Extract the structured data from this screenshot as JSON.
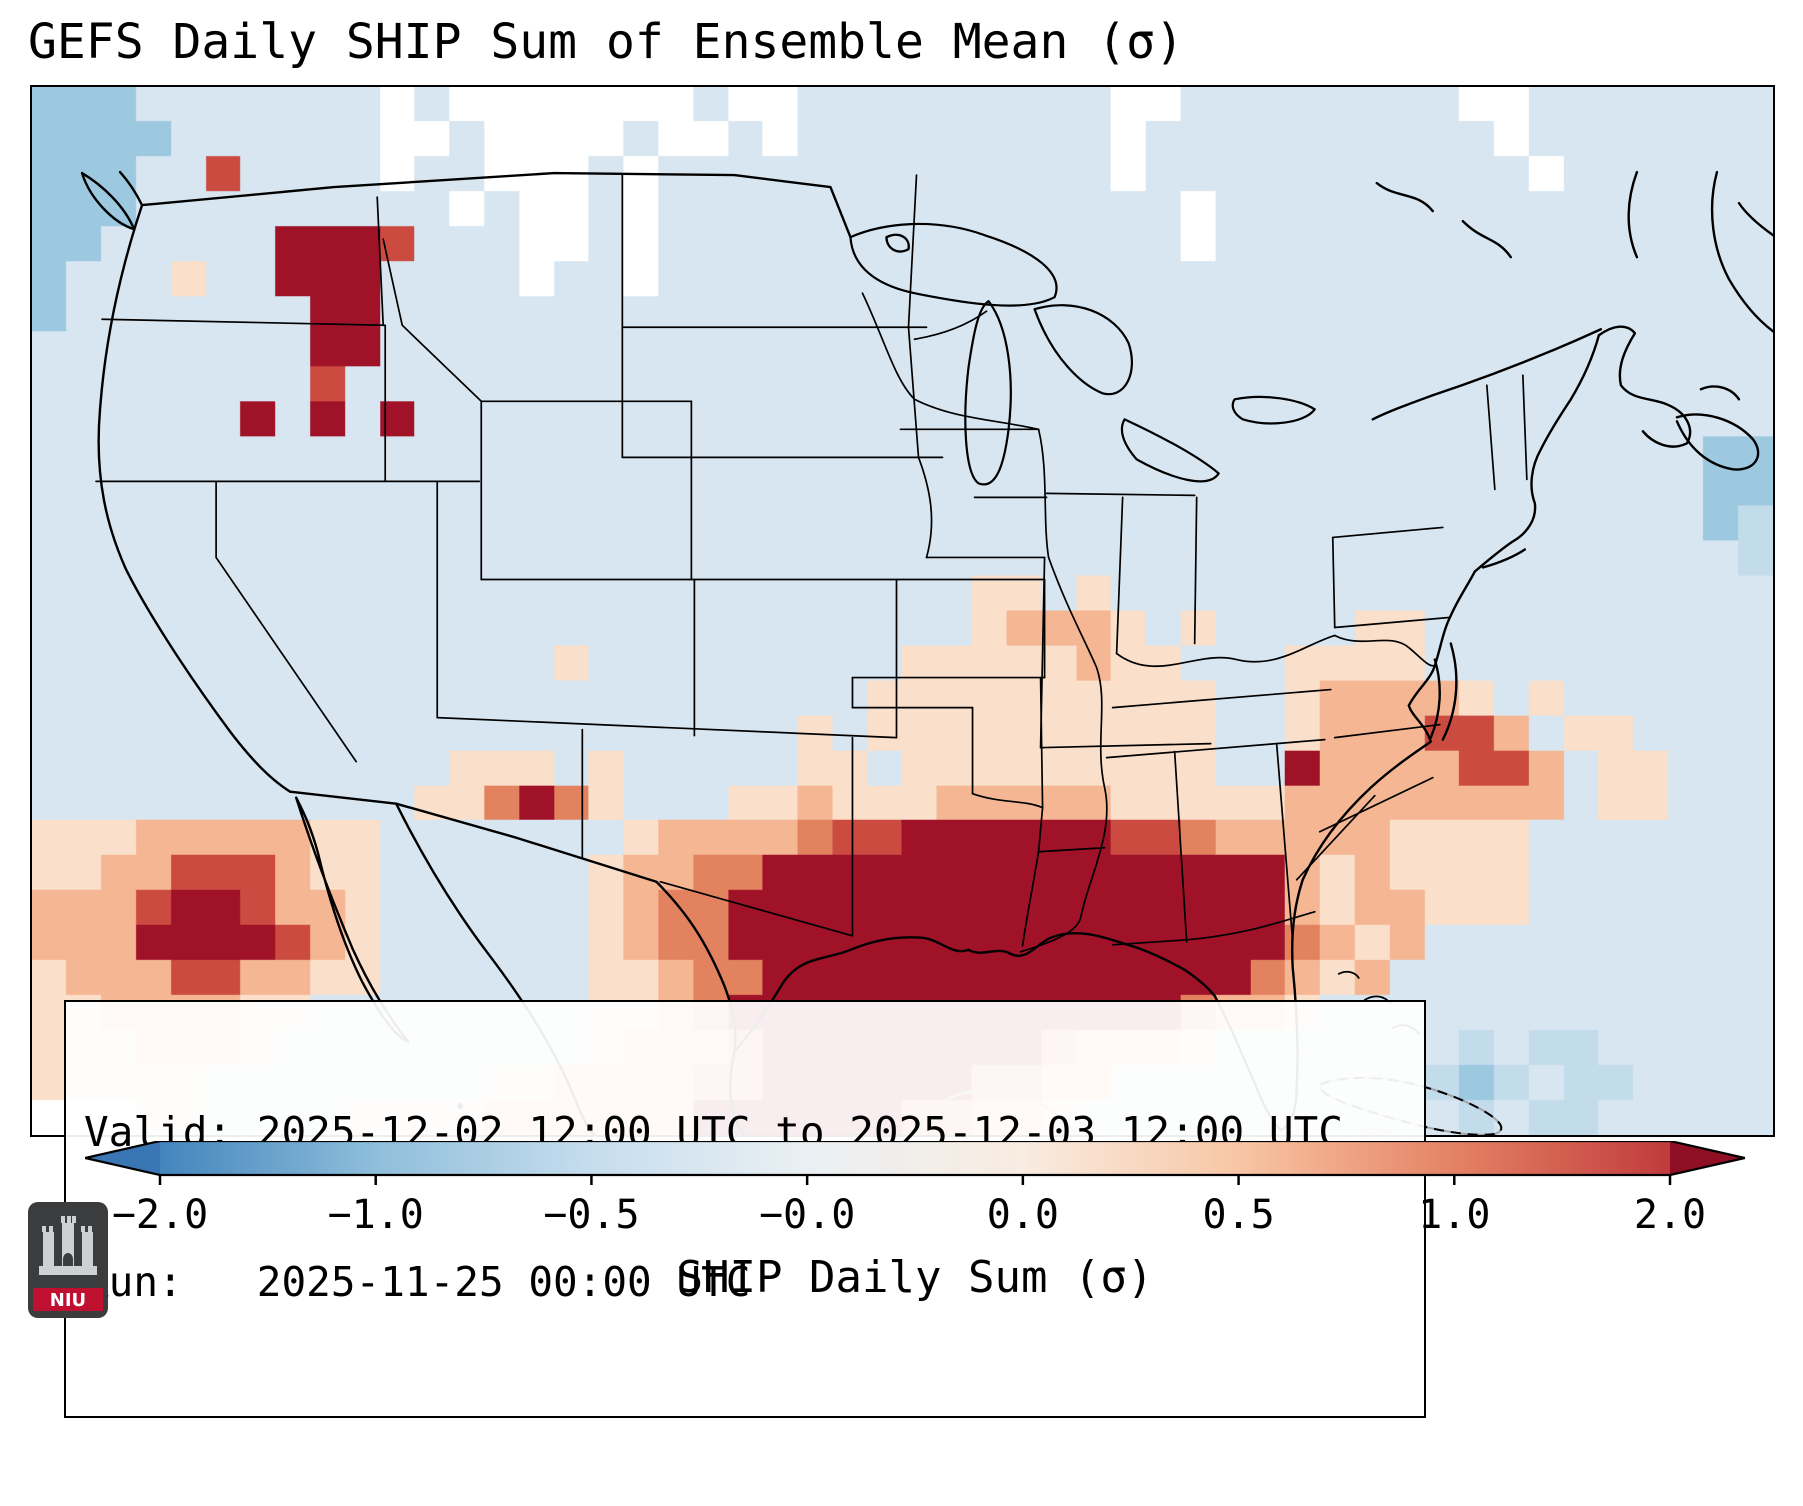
{
  "title": "GEFS Daily SHIP Sum of Ensemble Mean (σ)",
  "info_box": {
    "valid_line": "Valid: 2025-12-02 12:00 UTC to 2025-12-03 12:00 UTC",
    "run_line": "Run:   2025-11-25 00:00 UTC"
  },
  "colorbar": {
    "label": "SHIP Daily Sum (σ)",
    "ticks": [
      "−2.0",
      "−1.0",
      "−0.5",
      "−0.0",
      "0.0",
      "0.5",
      "1.0",
      "2.0"
    ],
    "stops": [
      "#4385bd",
      "#8fbedb",
      "#c6ddee",
      "#eaf0f3",
      "#f9ece1",
      "#f8c6a5",
      "#e58265",
      "#c03b3c"
    ],
    "under_color": "#3a76b3",
    "over_color": "#8f0f24",
    "outline_color": "#000000"
  },
  "logo": {
    "text": "NIU",
    "shield_color": "#3b3c3e",
    "band_color": "#c01030"
  },
  "chart_data": {
    "type": "heatmap",
    "title": "GEFS Daily SHIP Sum of Ensemble Mean (σ)",
    "colorbar_label": "SHIP Daily Sum (σ)",
    "colorbar_ticks": [
      -2.0,
      -1.0,
      -0.5,
      -0.0,
      0.0,
      0.5,
      1.0,
      2.0
    ],
    "valid": "2025-12-02 12:00 UTC to 2025-12-03 12:00 UTC",
    "run": "2025-11-25 00:00 UTC",
    "grid": {
      "cols": 50,
      "rows": 30,
      "legend": "one character per grid cell; sigma values estimated from the colorbar",
      "palette": {
        ".": {
          "sigma": -0.2,
          "color": "#d7e6f1"
        },
        "B": {
          "sigma": -1.0,
          "color": "#9cc8e0"
        },
        "b": {
          "sigma": -0.5,
          "color": "#c3dcec"
        },
        "w": {
          "sigma": 0.0,
          "color": "#ffffff"
        },
        "p": {
          "sigma": 0.3,
          "color": "#fadfca"
        },
        "o": {
          "sigma": 0.7,
          "color": "#f5b694"
        },
        "O": {
          "sigma": 1.1,
          "color": "#e2825f"
        },
        "r": {
          "sigma": 1.6,
          "color": "#cb4b41"
        },
        "d": {
          "sigma": 2.0,
          "color": "#a01227"
        }
      },
      "rows_data": [
        "BBB.......w.wwwwwww.ww.........ww........ww.......",
        "BBBB......ww.wwww.ww.w.........w..........w.......",
        "BBB..r....w..www.w.............w...........w......",
        "BBB.........w.ww.w...............w................",
        "BB.....dddr...ww.w...............w................",
        "B...p..ddd....w..w................................",
        "B.......dd........................................",
        "........dd........................................",
        "........r.........................................",
        "......d.d.d.......................................",
        "................................................BB",
        "................................................BB",
        "................................................Bb",
        ".................................................b",
        "...........................pp.p..................",
        "...........................pooop.p....pp..........",
        "...............p.........pppppopp...pppp..........",
        "........................pppppppppp..poooop.p......",
        "......................p.pppppppppp..pooorro.pp....",
        "............ppp.p.....pp.ppppppppp..doooorro.pp...",
        "...........ppOdOp...ppopppooooopppppoooooooo.pp...",
        "pppooooopp.......pooooOrrddddddrrOooooopppp.......",
        "ppoorrropp......pooOOdddddddddddddddopopppp.......",
        "ooorddroop......poOOddddddddddddddddopooppp.......",
        "oooddddrop......poOOddddddddddddddddOopo..........",
        "pooorroopp......ppoOOddddddddddddddOopo...........",
        "ppoooopp........ppoOdddddddddddddOoop.............",
        "pppooop.........poooOddddddddOooop.......b.bb.....",
        "ppppp........ppooooOOddddddOOoo.........bBb.bb....",
        "wwwpp....ppppooooooddddddOOoop...........b.bb....."
      ]
    },
    "notable_features": [
      {
        "name": "Gulf of Mexico maximum",
        "sigma": "2 or greater"
      },
      {
        "name": "Pacific maximum southwest of Baja California",
        "sigma": "2 or greater"
      },
      {
        "name": "Isolated Idaho / Great Basin maxima",
        "sigma": "2 or greater"
      },
      {
        "name": "Southeast US and western Atlantic positive band",
        "sigma": "0.5 to 1.5"
      },
      {
        "name": "Weak negative background over most of CONUS and Canada",
        "sigma": "-0.5 to 0"
      }
    ]
  }
}
